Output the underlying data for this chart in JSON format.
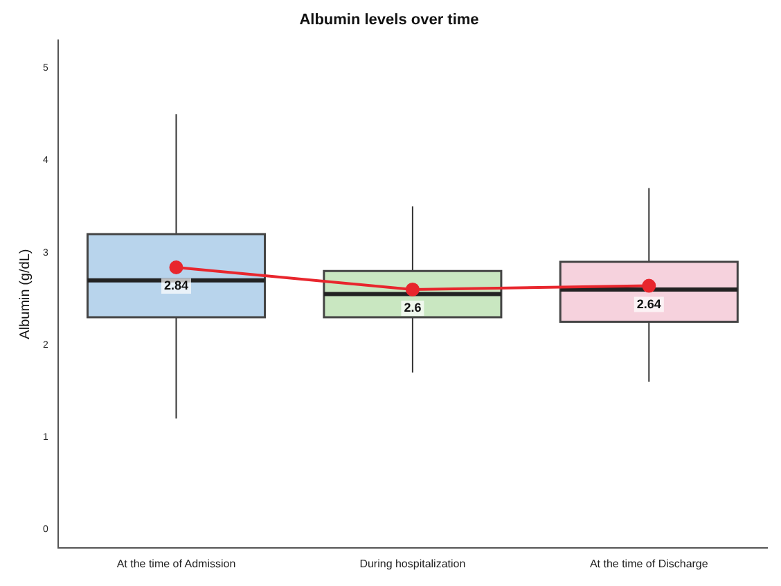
{
  "chart_data": {
    "type": "box",
    "title": "Albumin levels over time",
    "ylabel": "Albumin (g/dL)",
    "categories": [
      "At the time of Admission",
      "During hospitalization",
      "At the time of Discharge"
    ],
    "series": [
      {
        "type": "box",
        "colors": [
          "#b8d4ec",
          "#c9e7c1",
          "#f6d2dd"
        ],
        "boxes": [
          {
            "low": 1.2,
            "q1": 2.3,
            "median": 2.7,
            "q3": 3.2,
            "high": 4.5
          },
          {
            "low": 1.7,
            "q1": 2.3,
            "median": 2.55,
            "q3": 2.8,
            "high": 3.5
          },
          {
            "low": 1.6,
            "q1": 2.25,
            "median": 2.6,
            "q3": 2.9,
            "high": 3.7
          }
        ]
      },
      {
        "type": "line",
        "color": "#e8262d",
        "x": [
          "At the time of Admission",
          "During hospitalization",
          "At the time of Discharge"
        ],
        "values": [
          2.84,
          2.6,
          2.64
        ],
        "value_labels": [
          "2.84",
          "2.6",
          "2.64"
        ]
      }
    ],
    "ylim": [
      -0.2,
      5.3
    ],
    "yticks": [
      0,
      1,
      2,
      3,
      4,
      5
    ],
    "grid": false,
    "legend": false,
    "marker": "circle",
    "line_style": "solid"
  }
}
